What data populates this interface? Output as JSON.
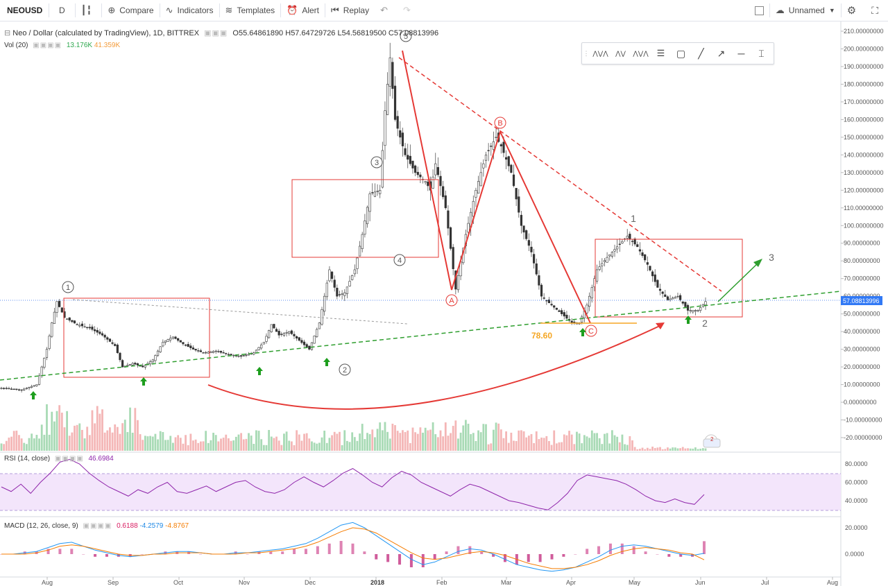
{
  "toolbar": {
    "symbol": "NEOUSD",
    "interval": "D",
    "compare": "Compare",
    "indicators": "Indicators",
    "templates": "Templates",
    "alert": "Alert",
    "replay": "Replay",
    "layout_name": "Unnamed"
  },
  "icons": [
    "candles-icon",
    "compare-icon",
    "indicators-icon",
    "templates-icon",
    "alert-icon",
    "replay-icon",
    "undo-icon",
    "redo-icon",
    "checkbox-icon",
    "cloud-icon",
    "settings-icon",
    "fullscreen-icon"
  ],
  "legend": {
    "title": "Neo / Dollar (calculated by TradingView), 1D, BITTREX",
    "open": "O55.64861890",
    "high": "H57.64729726",
    "low": "L54.56819500",
    "close": "C57.08813996",
    "vol_label": "Vol (20)",
    "vol_value1": "13.176K",
    "vol_value2": "41.359K",
    "rsi_label": "RSI (14, close)",
    "rsi_value": "46.6984",
    "macd_label": "MACD (12, 26, close, 9)",
    "macd_value1": "0.6188",
    "macd_value2": "-4.2579",
    "macd_value3": "-4.8767"
  },
  "chart_data": [
    {
      "type": "candlestick",
      "title": "Neo / Dollar (calculated by TradingView), 1D, BITTREX",
      "x_ticks": [
        "Aug",
        "Sep",
        "Oct",
        "Nov",
        "Dec",
        "2018",
        "Feb",
        "Mar",
        "Apr",
        "May",
        "Jun",
        "Jul",
        "Aug"
      ],
      "y_ticks": [
        "210.00000000",
        "200.00000000",
        "190.00000000",
        "180.00000000",
        "170.00000000",
        "160.00000000",
        "150.00000000",
        "140.00000000",
        "130.00000000",
        "120.00000000",
        "110.00000000",
        "100.00000000",
        "90.00000000",
        "80.00000000",
        "70.00000000",
        "60.00000000",
        "50.00000000",
        "40.00000000",
        "30.00000000",
        "20.00000000",
        "10.00000000",
        "0.00000000",
        "-10.00000000",
        "-20.00000000"
      ],
      "ylim": [
        -20,
        210
      ],
      "last_price": "57.08813996",
      "close_path": [
        [
          0,
          8
        ],
        [
          8,
          7
        ],
        [
          14,
          10
        ],
        [
          18,
          30
        ],
        [
          20,
          45
        ],
        [
          22,
          57
        ],
        [
          25,
          48
        ],
        [
          30,
          44
        ],
        [
          35,
          42
        ],
        [
          40,
          38
        ],
        [
          45,
          32
        ],
        [
          48,
          20
        ],
        [
          52,
          22
        ],
        [
          56,
          20
        ],
        [
          60,
          24
        ],
        [
          64,
          34
        ],
        [
          68,
          37
        ],
        [
          72,
          33
        ],
        [
          76,
          30
        ],
        [
          80,
          28
        ],
        [
          85,
          29
        ],
        [
          90,
          27
        ],
        [
          95,
          26
        ],
        [
          100,
          28
        ],
        [
          104,
          34
        ],
        [
          107,
          44
        ],
        [
          110,
          38
        ],
        [
          114,
          40
        ],
        [
          118,
          35
        ],
        [
          122,
          30
        ],
        [
          126,
          45
        ],
        [
          130,
          75
        ],
        [
          133,
          60
        ],
        [
          136,
          62
        ],
        [
          140,
          75
        ],
        [
          143,
          95
        ],
        [
          146,
          118
        ],
        [
          150,
          120
        ],
        [
          152,
          165
        ],
        [
          154,
          195
        ],
        [
          156,
          160
        ],
        [
          160,
          140
        ],
        [
          164,
          130
        ],
        [
          168,
          125
        ],
        [
          170,
          120
        ],
        [
          172,
          135
        ],
        [
          176,
          110
        ],
        [
          180,
          64
        ],
        [
          184,
          95
        ],
        [
          188,
          120
        ],
        [
          192,
          140
        ],
        [
          196,
          150
        ],
        [
          198,
          145
        ],
        [
          202,
          130
        ],
        [
          206,
          100
        ],
        [
          210,
          85
        ],
        [
          214,
          60
        ],
        [
          218,
          55
        ],
        [
          222,
          50
        ],
        [
          226,
          45
        ],
        [
          229,
          45
        ],
        [
          232,
          55
        ],
        [
          236,
          75
        ],
        [
          240,
          82
        ],
        [
          244,
          88
        ],
        [
          248,
          94
        ],
        [
          252,
          88
        ],
        [
          256,
          78
        ],
        [
          260,
          65
        ],
        [
          264,
          58
        ],
        [
          268,
          60
        ],
        [
          272,
          52
        ],
        [
          276,
          52
        ],
        [
          279,
          57
        ]
      ],
      "annotations": {
        "wave_labels": [
          "1",
          "2",
          "3",
          "4",
          "5",
          "A",
          "B",
          "C"
        ],
        "right_labels": [
          "1",
          "2",
          "3"
        ],
        "fib_level": "78.60",
        "up_arrows_count": 7
      }
    },
    {
      "type": "bar",
      "title": "Vol (20)",
      "values_note": "13.176K / 41.359K",
      "price_scale_badge": "2"
    },
    {
      "type": "line",
      "title": "RSI (14, close)",
      "y_ticks": [
        "80.0000",
        "60.0000",
        "40.0000"
      ],
      "ylim": [
        25,
        85
      ],
      "band": [
        30,
        70
      ],
      "current": 46.6984,
      "values": [
        55,
        50,
        58,
        48,
        60,
        70,
        82,
        85,
        80,
        70,
        62,
        55,
        50,
        45,
        52,
        48,
        55,
        60,
        50,
        48,
        52,
        56,
        50,
        55,
        60,
        62,
        55,
        50,
        48,
        52,
        60,
        66,
        60,
        55,
        62,
        70,
        75,
        68,
        60,
        55,
        65,
        72,
        68,
        60,
        55,
        50,
        45,
        52,
        58,
        55,
        50,
        45,
        40,
        38,
        35,
        32,
        30,
        38,
        48,
        62,
        68,
        66,
        64,
        62,
        58,
        52,
        45,
        40,
        38,
        42,
        38,
        36,
        46.7
      ]
    },
    {
      "type": "line",
      "title": "MACD (12, 26, close, 9)",
      "y_ticks": [
        "20.0000",
        "0.0000"
      ],
      "ylim": [
        -15,
        25
      ],
      "series": [
        {
          "name": "0.6188",
          "values": [
            0,
            0,
            1,
            2,
            5,
            8,
            9,
            6,
            3,
            1,
            -1,
            -2,
            -1,
            0,
            1,
            2,
            2,
            1,
            0,
            0,
            1,
            1,
            2,
            3,
            4,
            6,
            8,
            12,
            17,
            22,
            24,
            20,
            14,
            8,
            2,
            -4,
            -8,
            -6,
            -2,
            2,
            4,
            3,
            0,
            -4,
            -8,
            -10,
            -12,
            -13,
            -12,
            -10,
            -6,
            -2,
            3,
            6,
            7,
            6,
            4,
            2,
            0,
            -1,
            0.6
          ]
        },
        {
          "name": "-4.2579",
          "values": [
            0,
            0,
            0,
            1,
            3,
            6,
            7,
            6,
            4,
            2,
            0,
            -1,
            -1,
            0,
            0,
            1,
            1,
            1,
            0,
            0,
            0,
            1,
            1,
            2,
            3,
            4,
            6,
            9,
            13,
            17,
            20,
            19,
            16,
            11,
            6,
            1,
            -3,
            -4,
            -3,
            -1,
            1,
            2,
            1,
            -1,
            -4,
            -7,
            -9,
            -11,
            -11,
            -10,
            -8,
            -5,
            -1,
            2,
            4,
            5,
            4,
            3,
            1,
            0,
            -4.3
          ]
        }
      ]
    }
  ]
}
